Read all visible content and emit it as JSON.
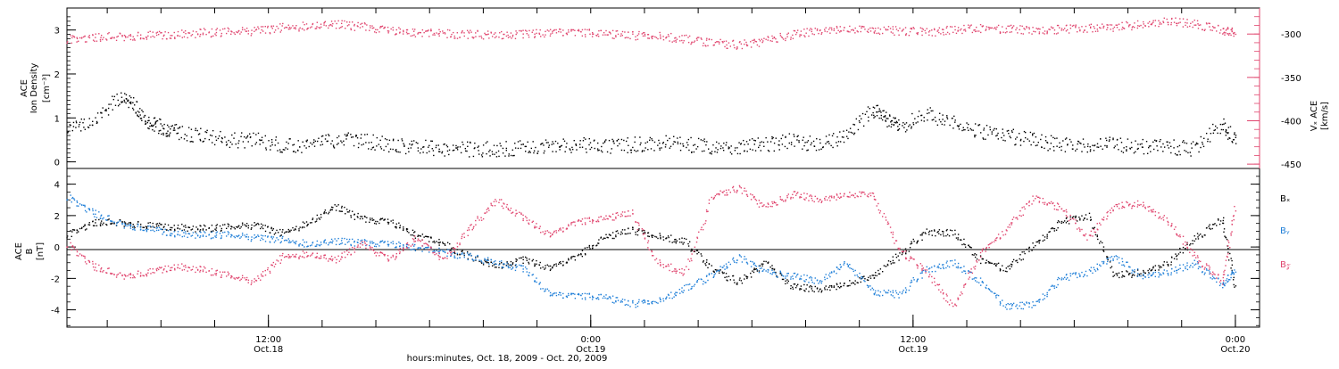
{
  "chart_data": [
    {
      "type": "scatter",
      "panel": "top",
      "ylabel_lines": [
        "ACE",
        "Ion Density"
      ],
      "yunit_left": "[cm⁻³]",
      "ylabel_right": "Vₓ ACE",
      "yunit_right": "[km/s]",
      "ylim_left": [
        -0.15,
        3.5
      ],
      "ylim_right": [
        -455,
        -270
      ],
      "yticks_left": [
        0,
        1,
        2,
        3
      ],
      "yticks_right": [
        -300,
        -350,
        -400,
        -450
      ],
      "xlim_hours": [
        0,
        44.4
      ],
      "colors": {
        "density": "#000000",
        "vx": "#e0456e"
      },
      "series": [
        {
          "name": "",
          "key": "density",
          "axis": "left",
          "x": [
            0,
            1,
            2,
            2.5,
            3,
            3.5,
            4,
            5,
            6,
            7,
            8,
            9,
            10,
            11,
            12,
            13,
            14,
            15,
            16,
            17,
            18,
            19,
            20,
            21,
            22,
            23,
            24,
            25,
            26,
            27,
            28,
            29,
            30,
            30.5,
            31,
            32,
            33,
            34,
            35,
            36,
            37,
            38,
            39,
            40,
            41,
            42,
            43,
            43.5
          ],
          "y": [
            0.7,
            1.0,
            1.5,
            1.3,
            0.9,
            0.8,
            0.7,
            0.6,
            0.5,
            0.5,
            0.4,
            0.4,
            0.5,
            0.5,
            0.4,
            0.35,
            0.3,
            0.3,
            0.3,
            0.35,
            0.35,
            0.4,
            0.35,
            0.4,
            0.45,
            0.4,
            0.35,
            0.35,
            0.4,
            0.5,
            0.4,
            0.6,
            1.2,
            1.0,
            0.8,
            1.1,
            0.9,
            0.7,
            0.6,
            0.5,
            0.4,
            0.4,
            0.4,
            0.35,
            0.35,
            0.3,
            0.9,
            0.5
          ]
        },
        {
          "name": "",
          "key": "vx",
          "axis": "right",
          "x": [
            0,
            1,
            2,
            3,
            4,
            5,
            6,
            7,
            8,
            9,
            10,
            11,
            12,
            13,
            14,
            15,
            16,
            17,
            18,
            19,
            20,
            21,
            22,
            23,
            24,
            25,
            26,
            27,
            28,
            29,
            30,
            31,
            32,
            33,
            34,
            35,
            36,
            37,
            38,
            39,
            40,
            41,
            42,
            43,
            43.5
          ],
          "y": [
            -306,
            -303,
            -302,
            -301,
            -300,
            -298,
            -297,
            -296,
            -292,
            -290,
            -288,
            -291,
            -296,
            -298,
            -299,
            -300,
            -301,
            -300,
            -297,
            -298,
            -300,
            -301,
            -302,
            -305,
            -310,
            -312,
            -308,
            -300,
            -296,
            -295,
            -294,
            -296,
            -297,
            -295,
            -293,
            -294,
            -295,
            -294,
            -293,
            -292,
            -288,
            -285,
            -288,
            -295,
            -298
          ]
        }
      ]
    },
    {
      "type": "scatter",
      "panel": "bottom",
      "ylabel_lines": [
        "ACE",
        "B"
      ],
      "yunit_left": "[nT]",
      "ylim": [
        -5.1,
        5.0
      ],
      "yticks": [
        4,
        2,
        0,
        -2,
        -4
      ],
      "xlim_hours": [
        0,
        44.4
      ],
      "legend_position": "right",
      "x_tick_labels": [
        {
          "time": "12:00",
          "date": "Oct.18",
          "hour": 7.5
        },
        {
          "time": "0:00",
          "date": "Oct.19",
          "hour": 19.5
        },
        {
          "time": "12:00",
          "date": "Oct.19",
          "hour": 31.5
        },
        {
          "time": "0:00",
          "date": "Oct.20",
          "hour": 43.5
        }
      ],
      "xlabel": "hours:minutes, Oct. 18, 2009 - Oct. 20, 2009",
      "colors": {
        "bx": "#000000",
        "by": "#1f7fd8",
        "bz": "#e0456e"
      },
      "series": [
        {
          "name": "Bₓ",
          "key": "bx",
          "x": [
            0,
            1,
            2,
            3,
            4,
            5,
            6,
            7,
            8,
            9,
            10,
            11,
            12,
            13,
            14,
            15,
            16,
            17,
            18,
            19,
            20,
            21,
            22,
            23,
            24,
            25,
            26,
            27,
            28,
            29,
            30,
            31,
            32,
            33,
            34,
            35,
            36,
            37,
            38,
            39,
            40,
            41,
            42,
            43,
            43.5
          ],
          "y": [
            0.8,
            1.6,
            1.6,
            1.4,
            1.3,
            1.2,
            1.3,
            1.4,
            0.9,
            1.6,
            2.6,
            1.8,
            1.6,
            0.8,
            0.2,
            -0.6,
            -1.2,
            -0.8,
            -1.3,
            -0.6,
            0.6,
            1.1,
            0.7,
            0.4,
            -1.4,
            -2.2,
            -1.0,
            -2.5,
            -2.7,
            -2.4,
            -1.8,
            -0.5,
            1.0,
            0.9,
            -0.8,
            -1.4,
            0.2,
            1.6,
            2.0,
            -1.8,
            -1.6,
            -1.0,
            0.6,
            1.8,
            -2.7
          ]
        },
        {
          "name": "Bᵧ",
          "key": "by",
          "x": [
            0,
            1,
            2,
            3,
            4,
            5,
            6,
            7,
            8,
            9,
            10,
            11,
            12,
            13,
            14,
            15,
            16,
            17,
            18,
            19,
            20,
            21,
            22,
            23,
            24,
            25,
            26,
            27,
            28,
            29,
            30,
            31,
            32,
            33,
            34,
            35,
            36,
            37,
            38,
            39,
            40,
            41,
            42,
            43,
            43.5
          ],
          "y": [
            3.2,
            2.2,
            1.5,
            1.2,
            0.9,
            0.8,
            0.8,
            0.6,
            0.5,
            0.2,
            0.4,
            0.3,
            0.2,
            0.0,
            -0.3,
            -0.6,
            -1.0,
            -1.4,
            -3.0,
            -3.1,
            -3.2,
            -3.6,
            -3.4,
            -2.6,
            -1.8,
            -0.6,
            -1.6,
            -1.8,
            -2.2,
            -1.0,
            -2.8,
            -3.0,
            -1.4,
            -1.0,
            -2.2,
            -3.8,
            -3.6,
            -2.0,
            -1.6,
            -0.6,
            -1.8,
            -1.6,
            -1.0,
            -2.4,
            -1.4
          ]
        },
        {
          "name": "B𝓏",
          "key": "bz",
          "x": [
            0,
            1,
            2,
            3,
            4,
            5,
            6,
            7,
            8,
            9,
            10,
            11,
            12,
            13,
            14,
            15,
            16,
            17,
            18,
            19,
            20,
            21,
            22,
            23,
            24,
            25,
            26,
            27,
            28,
            29,
            30,
            31,
            32,
            33,
            34,
            35,
            36,
            37,
            38,
            39,
            40,
            41,
            42,
            43,
            43.5
          ],
          "y": [
            0.2,
            -1.2,
            -1.8,
            -1.6,
            -1.2,
            -1.4,
            -1.8,
            -2.2,
            -0.6,
            -0.4,
            -0.8,
            0.2,
            -0.8,
            0.6,
            -0.8,
            1.2,
            3.0,
            1.8,
            0.8,
            1.6,
            1.8,
            2.2,
            -1.0,
            -1.6,
            3.2,
            3.8,
            2.5,
            3.4,
            3.0,
            3.3,
            3.4,
            -0.2,
            -1.6,
            -3.8,
            -0.4,
            1.2,
            3.2,
            2.5,
            0.6,
            2.6,
            2.8,
            1.6,
            -0.6,
            -2.2,
            2.8
          ]
        }
      ]
    }
  ]
}
